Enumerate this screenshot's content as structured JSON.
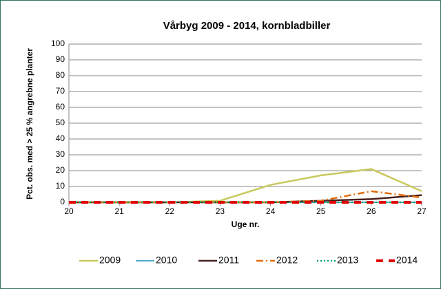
{
  "chart_data": {
    "type": "line",
    "title": "Vårbyg 2009 - 2014, kornbladbiller",
    "y_label": "Pct. obs. med > 25 % angrebne planter",
    "x_label": "Uge nr.",
    "x": [
      20,
      21,
      22,
      23,
      24,
      25,
      26,
      27
    ],
    "xlim": [
      20,
      27
    ],
    "xticks": [
      20,
      21,
      22,
      23,
      24,
      25,
      26,
      27
    ],
    "ylim": [
      0,
      100
    ],
    "yticks": [
      0,
      10,
      20,
      30,
      40,
      50,
      60,
      70,
      80,
      90,
      100
    ],
    "grid": true,
    "legend": "bottom",
    "series": [
      {
        "name": "2009",
        "color": "#c9c85c",
        "dash": "solid",
        "width": 2.5,
        "values": [
          0,
          0,
          0,
          1,
          11,
          17,
          21,
          7
        ]
      },
      {
        "name": "2010",
        "color": "#4bacc6",
        "dash": "solid",
        "width": 2,
        "values": [
          0,
          0,
          0,
          0,
          0,
          0,
          0,
          0
        ]
      },
      {
        "name": "2011",
        "color": "#4a1f1f",
        "dash": "solid",
        "width": 2.5,
        "values": [
          0,
          0,
          0,
          0,
          0,
          1,
          2,
          4.5
        ]
      },
      {
        "name": "2012",
        "color": "#e46c0a",
        "dash": "dashdot",
        "width": 2.5,
        "values": [
          0,
          0,
          0,
          0,
          0,
          1,
          7,
          3
        ]
      },
      {
        "name": "2013",
        "color": "#00a060",
        "dash": "dotted",
        "width": 2.5,
        "values": [
          0,
          0,
          0,
          0,
          0,
          0,
          0,
          0
        ]
      },
      {
        "name": "2014",
        "color": "#e00000",
        "dash": "dashed",
        "width": 4,
        "values": [
          0,
          0,
          0,
          0,
          0,
          0,
          0,
          0
        ]
      }
    ]
  }
}
